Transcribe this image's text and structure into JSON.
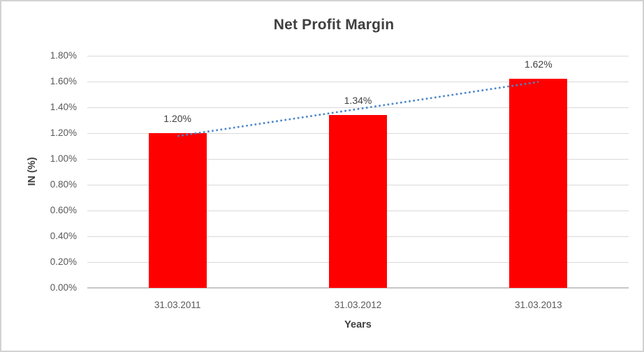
{
  "chart_data": {
    "type": "bar",
    "title": "Net Profit Margin",
    "categories": [
      "31.03.2011",
      "31.03.2012",
      "31.03.2013"
    ],
    "values": [
      1.2,
      1.34,
      1.62
    ],
    "value_labels": [
      "1.20%",
      "1.34%",
      "1.62%"
    ],
    "xlabel": "Years",
    "ylabel": "IN (%)",
    "ylim": [
      0,
      1.8
    ],
    "ytick_step": 0.2,
    "ytick_labels": [
      "0.00%",
      "0.20%",
      "0.40%",
      "0.60%",
      "0.80%",
      "1.00%",
      "1.20%",
      "1.40%",
      "1.60%",
      "1.80%"
    ],
    "grid": true,
    "legend": false,
    "bar_color": "#ff0000",
    "gridline_color": "#d9d9d9",
    "axis_line_color": "#c6c6c6",
    "text_color": "#595959",
    "title_color": "#3f3f3f",
    "trendline": {
      "type": "linear",
      "style": "dotted",
      "color": "#4a86c8",
      "values_at_first_and_last_category": [
        1.177,
        1.597
      ]
    }
  }
}
